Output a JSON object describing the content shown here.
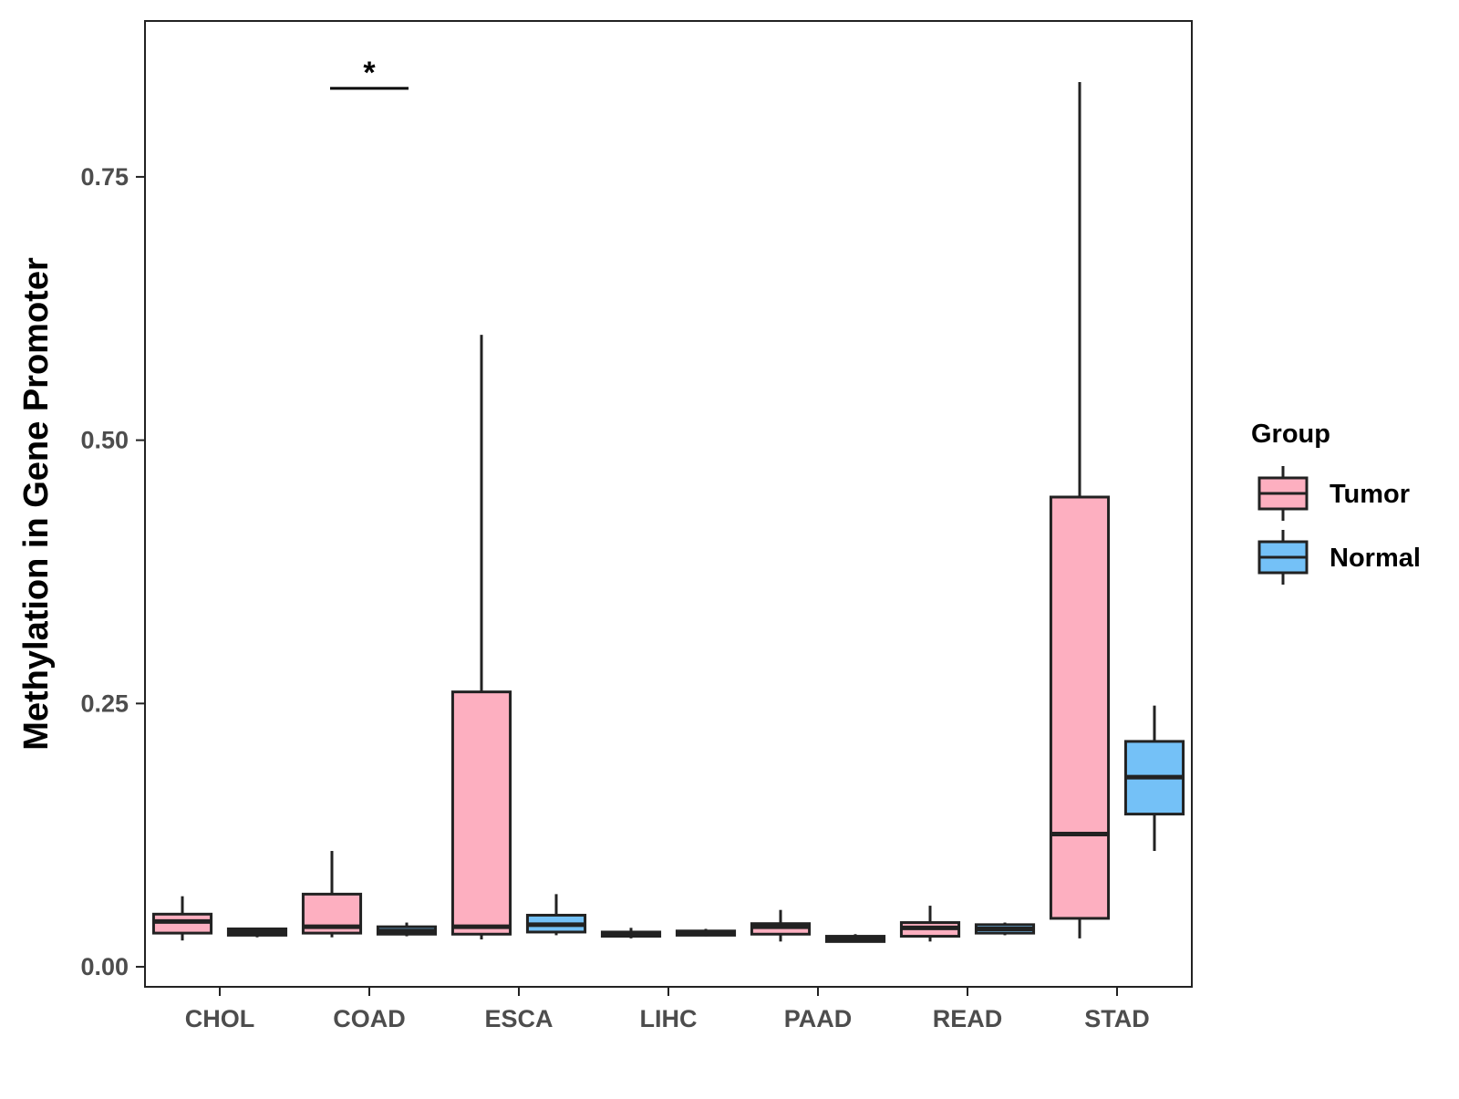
{
  "chart_data": {
    "type": "boxplot",
    "title": "",
    "xlabel": "",
    "ylabel": "Methylation in Gene Promoter",
    "ylim": [
      -0.019,
      0.898
    ],
    "yticks": [
      0.0,
      0.25,
      0.5,
      0.75
    ],
    "ytick_labels": [
      "0.00",
      "0.25",
      "0.50",
      "0.75"
    ],
    "categories": [
      "CHOL",
      "COAD",
      "ESCA",
      "LIHC",
      "PAAD",
      "READ",
      "STAD"
    ],
    "grid": false,
    "legend": {
      "title": "Group",
      "position": "right",
      "entries": [
        {
          "name": "Tumor",
          "color": "#FDAFC0"
        },
        {
          "name": "Normal",
          "color": "#74C1F7"
        }
      ]
    },
    "series": [
      {
        "name": "Tumor",
        "color": "#FDAFC0",
        "boxes": [
          {
            "category": "CHOL",
            "whisker_low": 0.025,
            "q1": 0.032,
            "median": 0.043,
            "q3": 0.05,
            "whisker_high": 0.067
          },
          {
            "category": "COAD",
            "whisker_low": 0.028,
            "q1": 0.032,
            "median": 0.038,
            "q3": 0.069,
            "whisker_high": 0.11
          },
          {
            "category": "ESCA",
            "whisker_low": 0.026,
            "q1": 0.031,
            "median": 0.038,
            "q3": 0.261,
            "whisker_high": 0.6
          },
          {
            "category": "LIHC",
            "whisker_low": 0.027,
            "q1": 0.029,
            "median": 0.031,
            "q3": 0.033,
            "whisker_high": 0.037
          },
          {
            "category": "PAAD",
            "whisker_low": 0.024,
            "q1": 0.031,
            "median": 0.038,
            "q3": 0.041,
            "whisker_high": 0.054
          },
          {
            "category": "READ",
            "whisker_low": 0.024,
            "q1": 0.029,
            "median": 0.037,
            "q3": 0.042,
            "whisker_high": 0.058
          },
          {
            "category": "STAD",
            "whisker_low": 0.027,
            "q1": 0.046,
            "median": 0.126,
            "q3": 0.446,
            "whisker_high": 0.84
          }
        ]
      },
      {
        "name": "Normal",
        "color": "#74C1F7",
        "boxes": [
          {
            "category": "CHOL",
            "whisker_low": 0.028,
            "q1": 0.03,
            "median": 0.033,
            "q3": 0.036,
            "whisker_high": 0.037
          },
          {
            "category": "COAD",
            "whisker_low": 0.029,
            "q1": 0.031,
            "median": 0.034,
            "q3": 0.038,
            "whisker_high": 0.042
          },
          {
            "category": "ESCA",
            "whisker_low": 0.03,
            "q1": 0.033,
            "median": 0.04,
            "q3": 0.049,
            "whisker_high": 0.069
          },
          {
            "category": "LIHC",
            "whisker_low": 0.029,
            "q1": 0.03,
            "median": 0.032,
            "q3": 0.034,
            "whisker_high": 0.036
          },
          {
            "category": "PAAD",
            "whisker_low": 0.023,
            "q1": 0.024,
            "median": 0.026,
            "q3": 0.029,
            "whisker_high": 0.031
          },
          {
            "category": "READ",
            "whisker_low": 0.03,
            "q1": 0.032,
            "median": 0.036,
            "q3": 0.04,
            "whisker_high": 0.042
          },
          {
            "category": "STAD",
            "whisker_low": 0.11,
            "q1": 0.145,
            "median": 0.18,
            "q3": 0.214,
            "whisker_high": 0.248
          }
        ]
      }
    ],
    "annotations": [
      {
        "category": "COAD",
        "label": "*",
        "value": 0.834
      }
    ]
  }
}
